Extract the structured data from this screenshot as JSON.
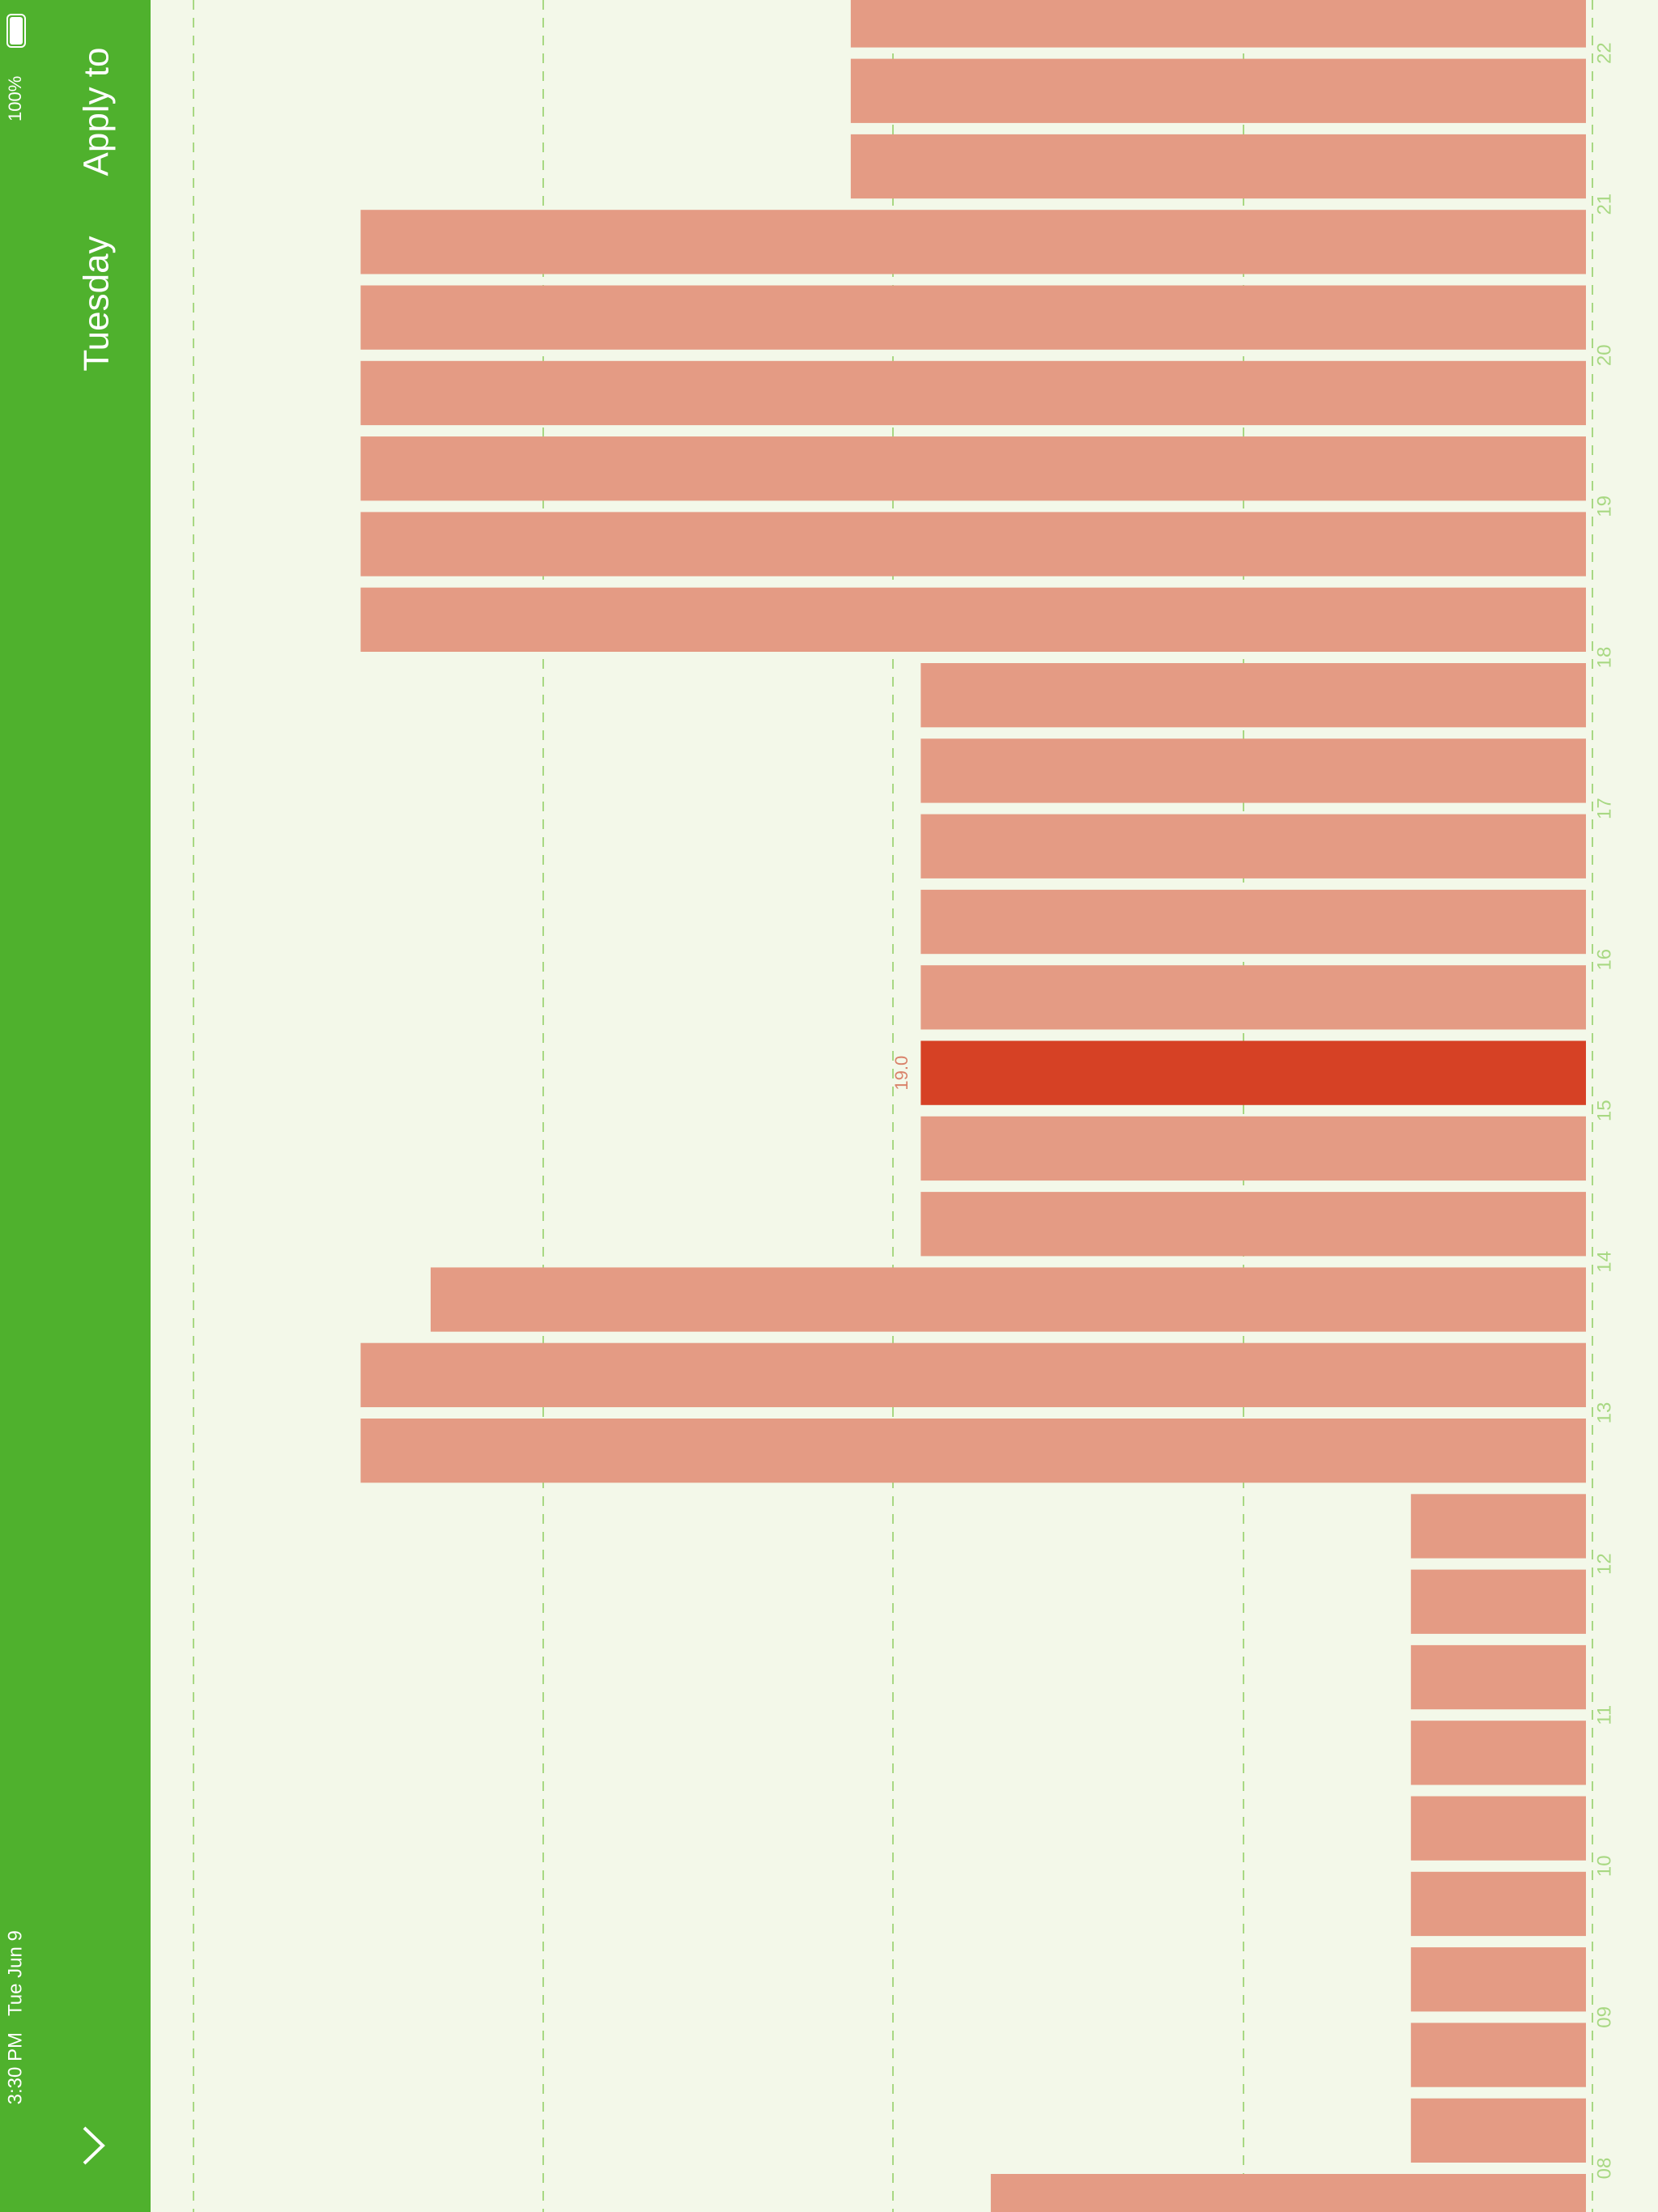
{
  "status_bar": {
    "time": "3:30 PM",
    "date": "Tue Jun 9",
    "battery": "100%"
  },
  "header": {
    "day": "Tuesday",
    "apply": "Apply to"
  },
  "chart_data": {
    "type": "bar",
    "orientation": "horizontal",
    "hour_labels": [
      "08",
      "09",
      "10",
      "11",
      "12",
      "13",
      "14",
      "15",
      "16",
      "17",
      "18",
      "19",
      "20",
      "21",
      "22"
    ],
    "values": [
      18.6,
      16.2,
      16.2,
      16.2,
      16.2,
      16.2,
      16.2,
      16.2,
      16.2,
      16.2,
      22.2,
      22.2,
      21.8,
      19.0,
      19.0,
      19.0,
      19.0,
      19.0,
      19.0,
      19.0,
      19.0,
      22.2,
      22.2,
      22.2,
      22.2,
      22.2,
      22.2,
      19.4,
      19.4,
      19.4
    ],
    "xlim": [
      15.2,
      23.4
    ],
    "selected_index": 15,
    "selected_label": "19.0",
    "color": "#e49b84",
    "selected_color": "#d64125"
  }
}
